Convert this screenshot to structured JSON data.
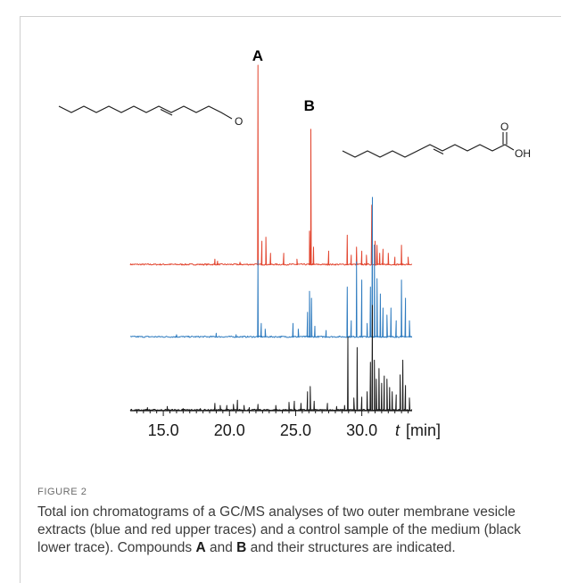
{
  "figure": {
    "label": "FIGURE 2",
    "caption_parts": [
      "Total ion chromatograms of a GC/MS analyses of two outer membrane vesicle extracts (blue and red upper traces) and a control sample of the medium (black lower trace). Compounds ",
      "A",
      " and ",
      "B",
      " and their structures are indicated."
    ]
  },
  "chart_data": {
    "type": "line",
    "xlabel_italic": "t",
    "xlabel_unit": "[min]",
    "xlim": [
      12.5,
      33.8
    ],
    "x_ticks": [
      "15.0",
      "20.0",
      "25.0",
      "30.0"
    ],
    "peak_labels": [
      {
        "text": "A",
        "x": 22.2
      },
      {
        "text": "B",
        "x": 26.1
      }
    ],
    "structure_labels": {
      "aldehyde_oxygen": "O",
      "acid_carbonyl_oxygen": "O",
      "acid_hydroxyl": "OH"
    },
    "series": [
      {
        "color": "#e2452f",
        "peaks": [
          [
            18.9,
            0.03
          ],
          [
            19.1,
            0.02
          ],
          [
            20.8,
            0.015
          ],
          [
            22.15,
            1.0
          ],
          [
            22.45,
            0.12
          ],
          [
            22.75,
            0.14
          ],
          [
            23.1,
            0.06
          ],
          [
            24.1,
            0.06
          ],
          [
            25.1,
            0.03
          ],
          [
            26.05,
            0.17
          ],
          [
            26.15,
            0.68
          ],
          [
            26.35,
            0.09
          ],
          [
            27.5,
            0.07
          ],
          [
            28.9,
            0.15
          ],
          [
            29.2,
            0.05
          ],
          [
            29.6,
            0.09
          ],
          [
            30.0,
            0.07
          ],
          [
            30.35,
            0.05
          ],
          [
            30.75,
            0.3
          ],
          [
            31.0,
            0.12
          ],
          [
            31.15,
            0.1
          ],
          [
            31.35,
            0.06
          ],
          [
            31.6,
            0.08
          ],
          [
            32.0,
            0.06
          ],
          [
            32.5,
            0.04
          ],
          [
            33.0,
            0.1
          ],
          [
            33.5,
            0.04
          ]
        ]
      },
      {
        "color": "#2e7bbf",
        "peaks": [
          [
            16.0,
            0.02
          ],
          [
            19.0,
            0.03
          ],
          [
            20.5,
            0.02
          ],
          [
            22.15,
            0.55
          ],
          [
            22.4,
            0.1
          ],
          [
            22.7,
            0.06
          ],
          [
            24.8,
            0.1
          ],
          [
            25.2,
            0.06
          ],
          [
            25.9,
            0.18
          ],
          [
            26.05,
            0.33
          ],
          [
            26.2,
            0.28
          ],
          [
            26.45,
            0.08
          ],
          [
            27.3,
            0.05
          ],
          [
            28.9,
            0.36
          ],
          [
            29.2,
            0.12
          ],
          [
            29.6,
            0.54
          ],
          [
            30.0,
            0.41
          ],
          [
            30.4,
            0.1
          ],
          [
            30.65,
            0.36
          ],
          [
            30.8,
            1.0
          ],
          [
            30.95,
            0.66
          ],
          [
            31.15,
            0.42
          ],
          [
            31.4,
            0.31
          ],
          [
            31.6,
            0.21
          ],
          [
            31.9,
            0.16
          ],
          [
            32.2,
            0.21
          ],
          [
            32.6,
            0.12
          ],
          [
            33.0,
            0.41
          ],
          [
            33.3,
            0.28
          ],
          [
            33.6,
            0.12
          ]
        ]
      },
      {
        "color": "#1a1a1a",
        "peaks": [
          [
            13.8,
            0.03
          ],
          [
            15.3,
            0.04
          ],
          [
            16.5,
            0.02
          ],
          [
            17.8,
            0.02
          ],
          [
            18.9,
            0.07
          ],
          [
            19.3,
            0.05
          ],
          [
            19.8,
            0.05
          ],
          [
            20.3,
            0.06
          ],
          [
            20.6,
            0.1
          ],
          [
            21.1,
            0.05
          ],
          [
            21.5,
            0.03
          ],
          [
            22.15,
            0.06
          ],
          [
            23.5,
            0.05
          ],
          [
            24.5,
            0.08
          ],
          [
            24.9,
            0.09
          ],
          [
            25.4,
            0.07
          ],
          [
            25.9,
            0.18
          ],
          [
            26.1,
            0.23
          ],
          [
            26.4,
            0.09
          ],
          [
            27.4,
            0.07
          ],
          [
            28.1,
            0.04
          ],
          [
            28.7,
            0.05
          ],
          [
            28.95,
            0.7
          ],
          [
            29.4,
            0.12
          ],
          [
            29.65,
            0.6
          ],
          [
            30.0,
            0.13
          ],
          [
            30.4,
            0.18
          ],
          [
            30.65,
            0.46
          ],
          [
            30.8,
            1.0
          ],
          [
            30.95,
            0.48
          ],
          [
            31.1,
            0.3
          ],
          [
            31.3,
            0.4
          ],
          [
            31.5,
            0.26
          ],
          [
            31.7,
            0.33
          ],
          [
            31.9,
            0.3
          ],
          [
            32.1,
            0.22
          ],
          [
            32.3,
            0.18
          ],
          [
            32.6,
            0.15
          ],
          [
            32.9,
            0.34
          ],
          [
            33.1,
            0.48
          ],
          [
            33.3,
            0.24
          ],
          [
            33.6,
            0.12
          ]
        ]
      }
    ]
  }
}
